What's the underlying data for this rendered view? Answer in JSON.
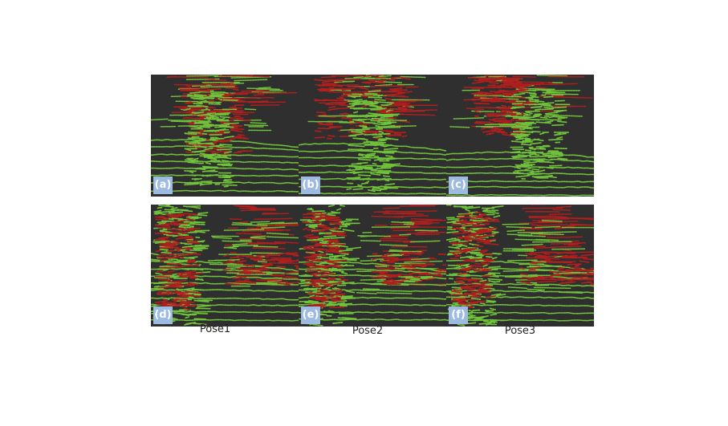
{
  "panels": [
    {
      "label": "(a)"
    },
    {
      "label": "(b)"
    },
    {
      "label": "(c)"
    },
    {
      "label": "(d)"
    },
    {
      "label": "(e)"
    },
    {
      "label": "(f)"
    }
  ],
  "captions": [
    "Pose1",
    "Pose2",
    "Pose3"
  ],
  "colors": {
    "background": "#2f2f2f",
    "green_points": "#6fc23a",
    "red_points": "#b01e1e",
    "badge": "#9dbbe0"
  }
}
